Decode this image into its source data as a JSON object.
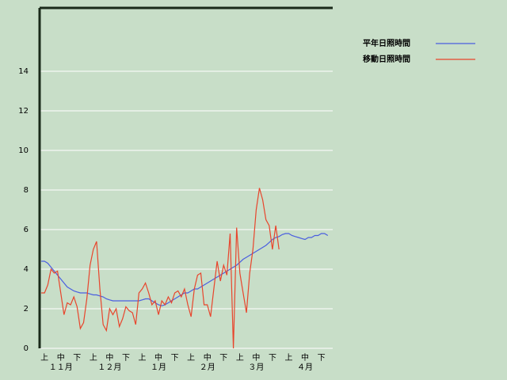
{
  "chart_data": {
    "type": "line",
    "categories": [
      null,
      "上",
      null,
      null,
      null,
      null,
      "中",
      null,
      null,
      null,
      null,
      "下",
      null,
      null,
      null,
      null,
      "上",
      null,
      null,
      null,
      null,
      "中",
      null,
      null,
      null,
      null,
      "下",
      null,
      null,
      null,
      null,
      "上",
      null,
      null,
      null,
      null,
      "中",
      null,
      null,
      null,
      null,
      "下",
      null,
      null,
      null,
      null,
      "上",
      null,
      null,
      null,
      null,
      "中",
      null,
      null,
      null,
      null,
      "下",
      null,
      null,
      null,
      null,
      "上",
      null,
      null,
      null,
      null,
      "中",
      null,
      null,
      null,
      null,
      "下",
      null,
      null,
      null,
      null,
      "上",
      null,
      null,
      null,
      null,
      "中",
      null,
      null,
      null,
      null,
      "下",
      null,
      null,
      null
    ],
    "month_labels": [
      "１１月",
      "１２月",
      "１月",
      "２月",
      "３月",
      "４月"
    ],
    "series": [
      {
        "name": "平年日照時間",
        "color": "#4a5ee0",
        "values": [
          4.4,
          4.4,
          4.3,
          4.1,
          3.9,
          3.7,
          3.5,
          3.3,
          3.1,
          3.0,
          2.9,
          2.85,
          2.8,
          2.8,
          2.8,
          2.75,
          2.7,
          2.7,
          2.65,
          2.6,
          2.5,
          2.45,
          2.4,
          2.4,
          2.4,
          2.4,
          2.4,
          2.4,
          2.4,
          2.4,
          2.4,
          2.45,
          2.5,
          2.5,
          2.4,
          2.3,
          2.2,
          2.15,
          2.2,
          2.3,
          2.4,
          2.5,
          2.6,
          2.7,
          2.8,
          2.8,
          2.9,
          3.0,
          3.0,
          3.1,
          3.2,
          3.3,
          3.4,
          3.5,
          3.6,
          3.7,
          3.8,
          3.9,
          4.0,
          4.1,
          4.2,
          4.35,
          4.5,
          4.6,
          4.7,
          4.8,
          4.9,
          5.0,
          5.1,
          5.2,
          5.35,
          5.5,
          5.6,
          5.65,
          5.75,
          5.8,
          5.8,
          5.7,
          5.65,
          5.6,
          5.55,
          5.5,
          5.6,
          5.6,
          5.7,
          5.7,
          5.8,
          5.8,
          5.7,
          null
        ]
      },
      {
        "name": "移動日照時間",
        "color": "#e8452c",
        "values": [
          2.8,
          2.8,
          3.2,
          4.0,
          3.8,
          3.9,
          2.8,
          1.7,
          2.3,
          2.2,
          2.6,
          2.1,
          1.0,
          1.3,
          2.5,
          4.2,
          5.0,
          5.4,
          3.0,
          1.2,
          0.9,
          2.0,
          1.7,
          2.0,
          1.1,
          1.5,
          2.1,
          1.9,
          1.8,
          1.2,
          2.8,
          3.0,
          3.3,
          2.8,
          2.2,
          2.4,
          1.7,
          2.4,
          2.2,
          2.6,
          2.3,
          2.8,
          2.9,
          2.6,
          3.0,
          2.2,
          1.6,
          3.0,
          3.7,
          3.8,
          2.2,
          2.2,
          1.6,
          3.0,
          4.4,
          3.4,
          4.2,
          3.7,
          5.8,
          0,
          6.1,
          3.8,
          2.8,
          1.8,
          3.8,
          5.0,
          7.0,
          8.1,
          7.5,
          6.5,
          6.2,
          5.0,
          6.2,
          5.0,
          null,
          null,
          null,
          null,
          null,
          null,
          null,
          null,
          null,
          null,
          null,
          null,
          null,
          null,
          null,
          null
        ]
      }
    ],
    "ylim": [
      0,
      17.2
    ],
    "yticks": [
      0,
      2,
      4,
      6,
      8,
      10,
      12,
      14
    ],
    "grid": true,
    "legend": "top-right"
  }
}
